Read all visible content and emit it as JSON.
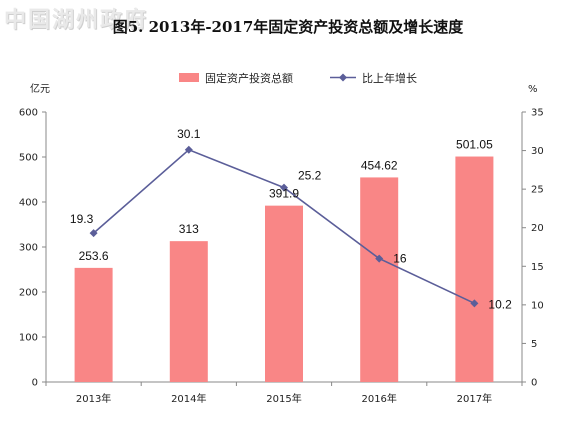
{
  "watermark": "中国湖州政府",
  "title": "图5. 2013年-2017年固定资产投资总额及增长速度",
  "colors": {
    "bar": "#f98686",
    "line": "#5b5e99",
    "axis": "#888888"
  },
  "chart_data": {
    "type": "bar",
    "categories": [
      "2013年",
      "2014年",
      "2015年",
      "2016年",
      "2017年"
    ],
    "series": [
      {
        "name": "固定资产投资总额",
        "type": "bar",
        "axis": "left",
        "values": [
          253.6,
          313,
          391.9,
          454.62,
          501.05
        ]
      },
      {
        "name": "比上年增长",
        "type": "line",
        "axis": "right",
        "values": [
          19.3,
          30.1,
          25.2,
          16,
          10.2
        ]
      }
    ],
    "ylabel": "亿元",
    "y2label": "%",
    "ylim": [
      0,
      600
    ],
    "y2lim": [
      0,
      35
    ],
    "yticks": [
      0,
      100,
      200,
      300,
      400,
      500,
      600
    ],
    "y2ticks": [
      0,
      5,
      10,
      15,
      20,
      25,
      30,
      35
    ],
    "grid": false,
    "legend": "top-center"
  }
}
